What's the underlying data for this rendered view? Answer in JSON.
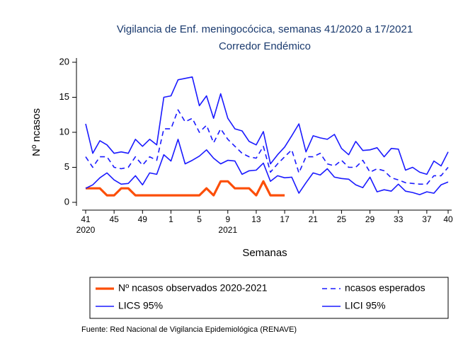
{
  "chart_data": {
    "type": "line",
    "title": "Vigilancia de Enf. meningocócica, semanas 41/2020 a 17/2021",
    "subtitle": "Corredor Endémico",
    "x_label": "Semanas",
    "y_label": "Nº ncasos",
    "source": "Fuente: Red Nacional de Vigilancia Epidemiológica (RENAVE)",
    "categories": [
      "41",
      null,
      null,
      null,
      "45",
      null,
      null,
      null,
      "49",
      null,
      null,
      null,
      "1",
      null,
      null,
      null,
      "5",
      null,
      null,
      null,
      "9",
      null,
      null,
      null,
      "13",
      null,
      null,
      null,
      "17",
      null,
      null,
      null,
      "21",
      null,
      null,
      null,
      "25",
      null,
      null,
      null,
      "29",
      null,
      null,
      null,
      "33",
      null,
      null,
      null,
      "37",
      null,
      null,
      "40"
    ],
    "category_years": [
      "2020",
      null,
      null,
      null,
      null,
      null,
      null,
      null,
      null,
      null,
      null,
      null,
      null,
      null,
      null,
      null,
      null,
      null,
      null,
      null,
      "2021",
      null,
      null,
      null,
      null,
      null,
      null,
      null,
      null,
      null,
      null,
      null,
      null,
      null,
      null,
      null,
      null,
      null,
      null,
      null,
      null,
      null,
      null,
      null,
      null,
      null,
      null,
      null,
      null,
      null,
      null,
      null
    ],
    "ylim": [
      0,
      20
    ],
    "yticks": [
      0,
      5,
      10,
      15,
      20
    ],
    "grid": false,
    "series": [
      {
        "name": "Nº ncasos observados 2020-2021",
        "color": "#fc4e08",
        "dashed": false,
        "values": [
          2,
          2,
          2,
          1,
          1,
          2,
          2,
          1,
          1,
          1,
          1,
          1,
          1,
          1,
          1,
          1,
          1,
          2,
          1,
          3,
          3,
          2,
          2,
          2,
          1,
          3,
          1,
          1,
          1,
          null,
          null,
          null,
          null,
          null,
          null,
          null,
          null,
          null,
          null,
          null,
          null,
          null,
          null,
          null,
          null,
          null,
          null,
          null,
          null,
          null,
          null,
          null
        ]
      },
      {
        "name": "ncasos esperados",
        "color": "#1a1aff",
        "dashed": true,
        "values": [
          6.5,
          5,
          6.5,
          6.5,
          5,
          4.8,
          5,
          6.5,
          5.3,
          6.5,
          6,
          10.5,
          10.5,
          13.2,
          11.5,
          12,
          10,
          11,
          8.5,
          10.5,
          9,
          8,
          7,
          6.5,
          6.3,
          8,
          4.3,
          5.5,
          6.5,
          7.5,
          4.2,
          6.5,
          6.5,
          7,
          5.5,
          5.2,
          6,
          5,
          5,
          6,
          4.3,
          4.8,
          4.5,
          3.5,
          3.2,
          2.8,
          2.7,
          2.6,
          2.6,
          3.8,
          3.8,
          5
        ]
      },
      {
        "name": "LICS 95%",
        "color": "#1a1aff",
        "dashed": false,
        "values": [
          11.2,
          7,
          8.8,
          8.2,
          7,
          7.2,
          7,
          9,
          8,
          9,
          8.2,
          15,
          15.2,
          17.5,
          17.7,
          17.9,
          13.8,
          15.2,
          12,
          15.5,
          12,
          10.5,
          10.2,
          8.7,
          8.2,
          10.1,
          5.5,
          6.8,
          7.9,
          9.5,
          11.2,
          7.2,
          9.5,
          9.2,
          9,
          9.7,
          7.7,
          6.8,
          8.7,
          7.4,
          7.5,
          7.8,
          6.5,
          7.7,
          7.6,
          4.6,
          5,
          4.3,
          4,
          5.9,
          5.2,
          7.2
        ]
      },
      {
        "name": "LICI 95%",
        "color": "#1a1aff",
        "dashed": false,
        "values": [
          2,
          2.5,
          3.5,
          4.2,
          3.2,
          2.6,
          2.7,
          3.8,
          2.5,
          4.2,
          4,
          6.8,
          5.9,
          9,
          5.5,
          6,
          6.6,
          7.5,
          6.3,
          5.5,
          6,
          5.9,
          4,
          4.5,
          4.6,
          5.6,
          3,
          3.8,
          3.5,
          3.6,
          1.3,
          2.8,
          4.2,
          3.9,
          4.8,
          3.6,
          3.4,
          3.3,
          2.5,
          2.1,
          3.6,
          1.5,
          1.8,
          1.6,
          2.6,
          1.6,
          1.4,
          1.1,
          1.5,
          1.3,
          2.5,
          2.9
        ]
      }
    ]
  }
}
